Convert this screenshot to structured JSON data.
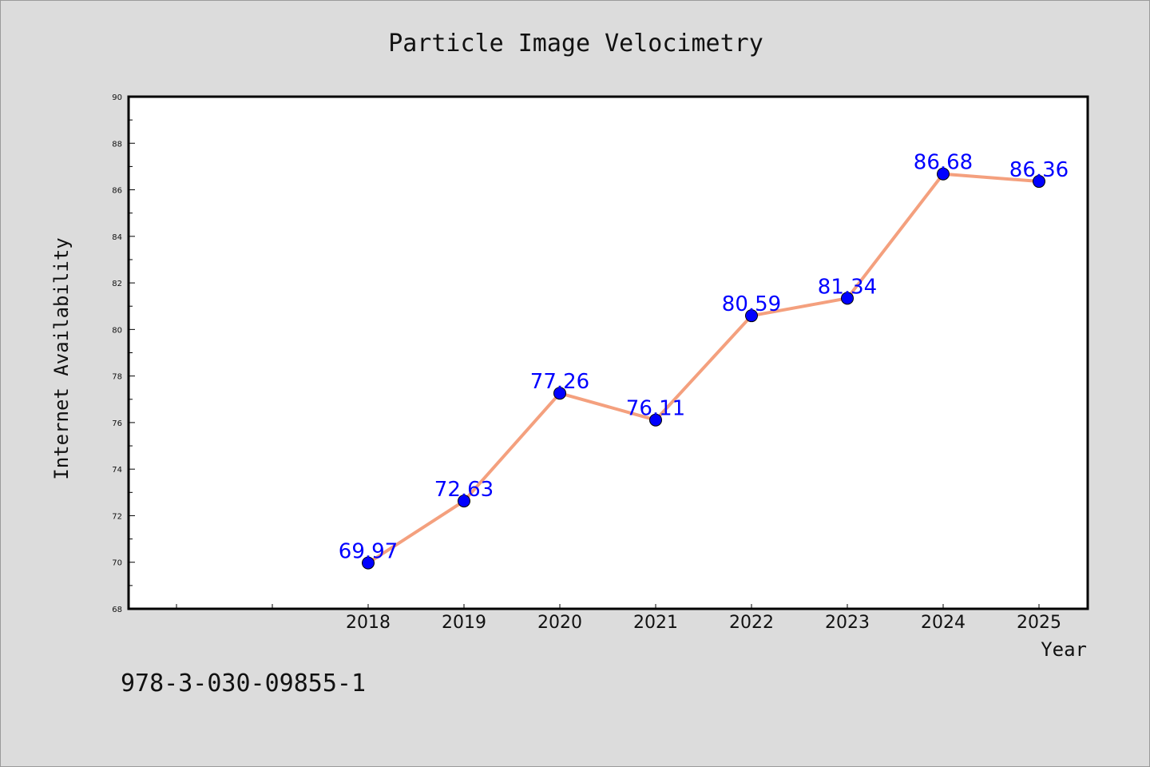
{
  "chart_data": {
    "type": "line",
    "title": "Particle Image Velocimetry",
    "xlabel": "Year",
    "ylabel": "Internet Availability",
    "categories": [
      "2018",
      "2019",
      "2020",
      "2021",
      "2022",
      "2023",
      "2024",
      "2025"
    ],
    "series": [
      {
        "values": [
          69.97,
          72.63,
          77.26,
          76.11,
          80.59,
          81.34,
          86.68,
          86.36
        ],
        "data_labels": [
          "69.97",
          "72.63",
          "77.26",
          "76.11",
          "80.59",
          "81.34",
          "86.68",
          "86.36"
        ],
        "line_color": "#f4a07e",
        "marker_color": "#0000ff"
      }
    ],
    "ylim": [
      68,
      90
    ],
    "yticks": [
      "68",
      "70",
      "72",
      "74",
      "76",
      "78",
      "80",
      "82",
      "84",
      "86",
      "88",
      "90"
    ],
    "grid": false,
    "legend": "none"
  },
  "annotation": "978-3-030-09855-1",
  "colors": {
    "background": "#dcdcdc",
    "plot_background": "#ffffff",
    "axis": "#000000",
    "label_text": "#0000ff"
  }
}
